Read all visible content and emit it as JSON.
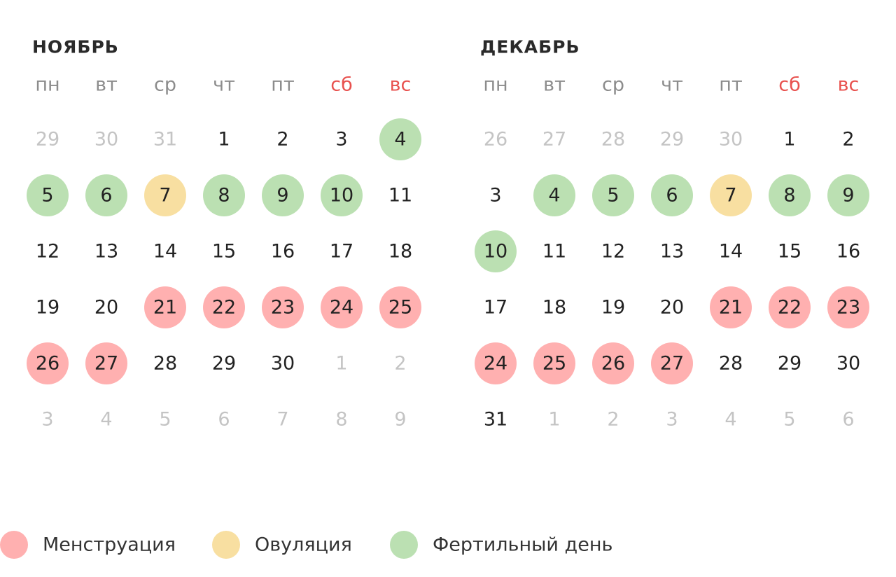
{
  "months": [
    {
      "title": "НОЯБРЬ",
      "weekdays": [
        {
          "label": "пн",
          "color": "#8c8c8c"
        },
        {
          "label": "вт",
          "color": "#8c8c8c"
        },
        {
          "label": "ср",
          "color": "#8c8c8c"
        },
        {
          "label": "чт",
          "color": "#8c8c8c"
        },
        {
          "label": "пт",
          "color": "#8c8c8c"
        },
        {
          "label": "сб",
          "color": "#e8514e"
        },
        {
          "label": "вс",
          "color": "#e8514e"
        }
      ],
      "rows": [
        [
          {
            "label": "29",
            "faded": true
          },
          {
            "label": "30",
            "faded": true
          },
          {
            "label": "31",
            "faded": true
          },
          {
            "label": "1"
          },
          {
            "label": "2"
          },
          {
            "label": "3"
          },
          {
            "label": "4",
            "color": "#bbe0b2"
          }
        ],
        [
          {
            "label": "5",
            "color": "#bbe0b2"
          },
          {
            "label": "6",
            "color": "#bbe0b2"
          },
          {
            "label": "7",
            "color": "#f8dfa1"
          },
          {
            "label": "8",
            "color": "#bbe0b2"
          },
          {
            "label": "9",
            "color": "#bbe0b2"
          },
          {
            "label": "10",
            "color": "#bbe0b2"
          },
          {
            "label": "11"
          }
        ],
        [
          {
            "label": "12"
          },
          {
            "label": "13"
          },
          {
            "label": "14"
          },
          {
            "label": "15"
          },
          {
            "label": "16"
          },
          {
            "label": "17"
          },
          {
            "label": "18"
          }
        ],
        [
          {
            "label": "19"
          },
          {
            "label": "20"
          },
          {
            "label": "21",
            "color": "#ffb0b0"
          },
          {
            "label": "22",
            "color": "#ffb0b0"
          },
          {
            "label": "23",
            "color": "#ffb0b0"
          },
          {
            "label": "24",
            "color": "#ffb0b0"
          },
          {
            "label": "25",
            "color": "#ffb0b0"
          }
        ],
        [
          {
            "label": "26",
            "color": "#ffb0b0"
          },
          {
            "label": "27",
            "color": "#ffb0b0"
          },
          {
            "label": "28"
          },
          {
            "label": "29"
          },
          {
            "label": "30"
          },
          {
            "label": "1",
            "faded": true
          },
          {
            "label": "2",
            "faded": true
          }
        ],
        [
          {
            "label": "3",
            "faded": true
          },
          {
            "label": "4",
            "faded": true
          },
          {
            "label": "5",
            "faded": true
          },
          {
            "label": "6",
            "faded": true
          },
          {
            "label": "7",
            "faded": true
          },
          {
            "label": "8",
            "faded": true
          },
          {
            "label": "9",
            "faded": true
          }
        ]
      ]
    },
    {
      "title": "ДЕКАБРЬ",
      "weekdays": [
        {
          "label": "пн",
          "color": "#8c8c8c"
        },
        {
          "label": "вт",
          "color": "#8c8c8c"
        },
        {
          "label": "ср",
          "color": "#8c8c8c"
        },
        {
          "label": "чт",
          "color": "#8c8c8c"
        },
        {
          "label": "пт",
          "color": "#8c8c8c"
        },
        {
          "label": "сб",
          "color": "#e8514e"
        },
        {
          "label": "вс",
          "color": "#e8514e"
        }
      ],
      "rows": [
        [
          {
            "label": "26",
            "faded": true
          },
          {
            "label": "27",
            "faded": true
          },
          {
            "label": "28",
            "faded": true
          },
          {
            "label": "29",
            "faded": true
          },
          {
            "label": "30",
            "faded": true
          },
          {
            "label": "1"
          },
          {
            "label": "2"
          }
        ],
        [
          {
            "label": "3"
          },
          {
            "label": "4",
            "color": "#bbe0b2"
          },
          {
            "label": "5",
            "color": "#bbe0b2"
          },
          {
            "label": "6",
            "color": "#bbe0b2"
          },
          {
            "label": "7",
            "color": "#f8dfa1"
          },
          {
            "label": "8",
            "color": "#bbe0b2"
          },
          {
            "label": "9",
            "color": "#bbe0b2"
          }
        ],
        [
          {
            "label": "10",
            "color": "#bbe0b2"
          },
          {
            "label": "11"
          },
          {
            "label": "12"
          },
          {
            "label": "13"
          },
          {
            "label": "14"
          },
          {
            "label": "15"
          },
          {
            "label": "16"
          }
        ],
        [
          {
            "label": "17"
          },
          {
            "label": "18"
          },
          {
            "label": "19"
          },
          {
            "label": "20"
          },
          {
            "label": "21",
            "color": "#ffb0b0"
          },
          {
            "label": "22",
            "color": "#ffb0b0"
          },
          {
            "label": "23",
            "color": "#ffb0b0"
          }
        ],
        [
          {
            "label": "24",
            "color": "#ffb0b0"
          },
          {
            "label": "25",
            "color": "#ffb0b0"
          },
          {
            "label": "26",
            "color": "#ffb0b0"
          },
          {
            "label": "27",
            "color": "#ffb0b0"
          },
          {
            "label": "28"
          },
          {
            "label": "29"
          },
          {
            "label": "30"
          }
        ],
        [
          {
            "label": "31"
          },
          {
            "label": "1",
            "faded": true
          },
          {
            "label": "2",
            "faded": true
          },
          {
            "label": "3",
            "faded": true
          },
          {
            "label": "4",
            "faded": true
          },
          {
            "label": "5",
            "faded": true
          },
          {
            "label": "6",
            "faded": true
          }
        ]
      ]
    }
  ],
  "legend": [
    {
      "label": "Менструация",
      "color": "#ffb0b0"
    },
    {
      "label": "Овуляция",
      "color": "#f8dfa1"
    },
    {
      "label": "Фертильный день",
      "color": "#bbe0b2"
    }
  ]
}
